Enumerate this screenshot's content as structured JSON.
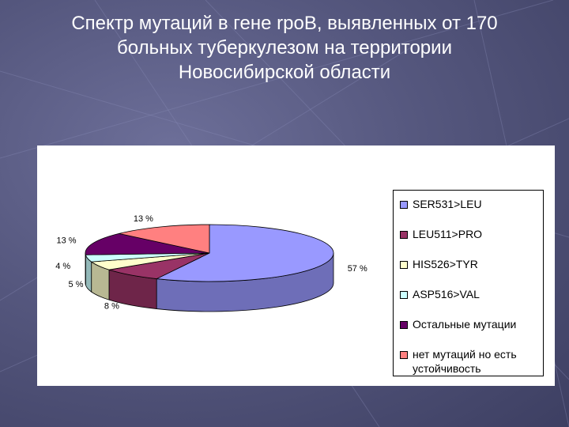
{
  "slide": {
    "title_line1": "Спектр мутаций в гене rpoB, выявленных от 170",
    "title_line2": "больных туберкулезом на территории",
    "title_line3": "Новосибирской области"
  },
  "chart_data": {
    "type": "pie",
    "title": "",
    "labels": [
      "SER531>LEU",
      "LEU511>PRO",
      "HIS526>TYR",
      "ASP516>VAL",
      "Остальные мутации",
      "нет мутаций но есть устойчивость"
    ],
    "values": [
      57,
      8,
      5,
      4,
      13,
      13
    ],
    "data_labels": [
      "57 %",
      "8 %",
      "5 %",
      "4 %",
      "13 %",
      "13 %"
    ],
    "colors": [
      "#9999ff",
      "#993366",
      "#ffffcc",
      "#ccffff",
      "#660066",
      "#ff8080"
    ],
    "legend_position": "right",
    "three_d": true
  }
}
